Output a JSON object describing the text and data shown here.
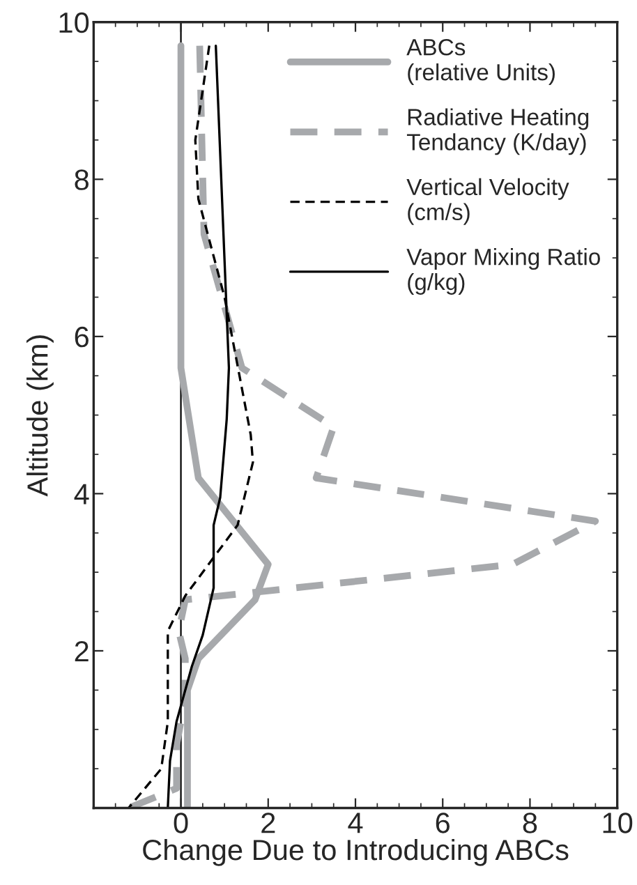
{
  "chart_data": {
    "type": "line",
    "xlabel": "Change Due to Introducing ABCs",
    "ylabel": "Altitude (km)",
    "xlim": [
      -2,
      10
    ],
    "xticks": [
      0,
      2,
      4,
      6,
      8,
      10
    ],
    "ylim": [
      0,
      10
    ],
    "yticks": [
      2,
      4,
      6,
      8,
      10
    ],
    "grid": false,
    "legend": "top right",
    "ref_lines": [
      {
        "axis": "x",
        "value": 0,
        "color": "#000000",
        "line_style": "solid"
      }
    ],
    "series": [
      {
        "name": "ABCs\n(relative Units)",
        "color": "#a7a9ac",
        "line_style": "solid",
        "x": [
          0,
          0,
          0.4,
          2.0,
          1.7,
          0.4,
          0.15,
          0.15
        ],
        "values": [
          9.7,
          5.6,
          4.2,
          3.1,
          2.65,
          1.9,
          1.5,
          0
        ]
      },
      {
        "name": "Radiative Heating\nTendancy (K/day)",
        "color": "#a7a9ac",
        "line_style": "dashed",
        "x": [
          0.43,
          0.53,
          1.4,
          3.5,
          3.1,
          9.5,
          7.6,
          0.1,
          -0.05,
          0.1,
          0.1,
          -0.1,
          -0.1,
          -1.2
        ],
        "values": [
          9.7,
          7.3,
          5.6,
          4.85,
          4.2,
          3.65,
          3.1,
          2.65,
          2.25,
          1.9,
          1.4,
          0.8,
          0.25,
          0
        ]
      },
      {
        "name": "Vertical Velocity\n(cm/s)",
        "color": "#000000",
        "line_style": "dashed",
        "x": [
          0.65,
          0.33,
          0.4,
          1.0,
          1.6,
          1.65,
          1.3,
          0.1,
          -0.3,
          -0.3,
          -0.45,
          -1.2
        ],
        "values": [
          9.7,
          8.5,
          7.75,
          6.5,
          4.75,
          4.4,
          3.6,
          2.7,
          2.25,
          1.1,
          0.5,
          0
        ]
      },
      {
        "name": "Vapor Mixing Ratio\n(g/kg)",
        "color": "#000000",
        "line_style": "solid",
        "x": [
          0.8,
          1.1,
          1.05,
          0.9,
          0.75,
          0.75,
          0.5,
          0.25,
          -0.1,
          -0.25,
          -0.3
        ],
        "values": [
          9.7,
          5.6,
          4.95,
          3.95,
          3.6,
          2.8,
          2.2,
          1.8,
          1.1,
          0.6,
          0
        ]
      }
    ]
  }
}
